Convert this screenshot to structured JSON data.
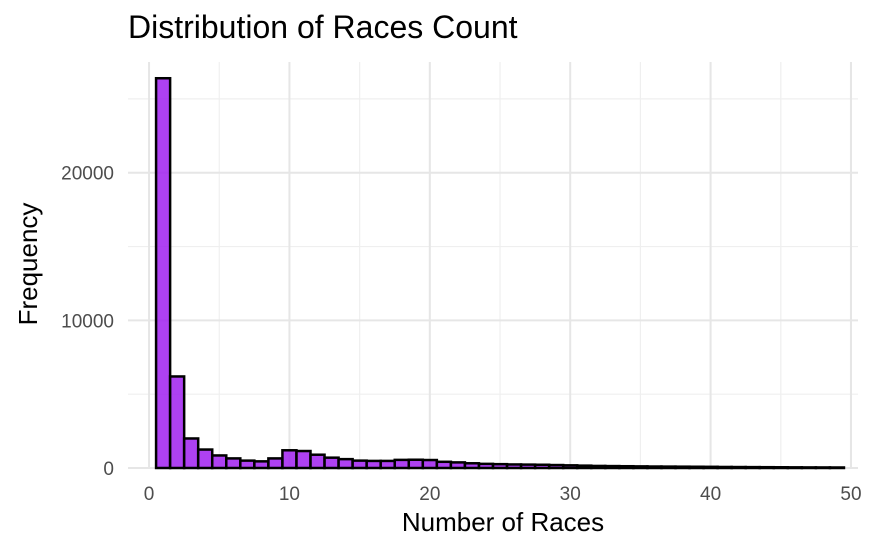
{
  "chart_data": {
    "type": "bar",
    "title": "Distribution of Races Count",
    "xlabel": "Number of Races",
    "ylabel": "Frequency",
    "xlim": [
      -1.5,
      50.5
    ],
    "ylim": [
      0,
      27500
    ],
    "x_ticks": [
      0,
      10,
      20,
      30,
      40,
      50
    ],
    "x_tick_labels": [
      "0",
      "10",
      "20",
      "30",
      "40",
      "50"
    ],
    "y_ticks": [
      0,
      10000,
      20000
    ],
    "y_tick_labels": [
      "0",
      "10000",
      "20000"
    ],
    "grid": true,
    "bar_color": "#a020f0",
    "bar_outline": "#000000",
    "bins": {
      "start": 0.5,
      "width": 1,
      "values": [
        26400,
        6200,
        2000,
        1250,
        850,
        650,
        500,
        450,
        650,
        1200,
        1150,
        900,
        700,
        600,
        500,
        480,
        480,
        550,
        560,
        540,
        420,
        380,
        320,
        280,
        260,
        240,
        230,
        220,
        200,
        180,
        160,
        140,
        130,
        120,
        110,
        100,
        95,
        90,
        85,
        80,
        70,
        65,
        60,
        55,
        50,
        45,
        40,
        38,
        35
      ]
    }
  }
}
